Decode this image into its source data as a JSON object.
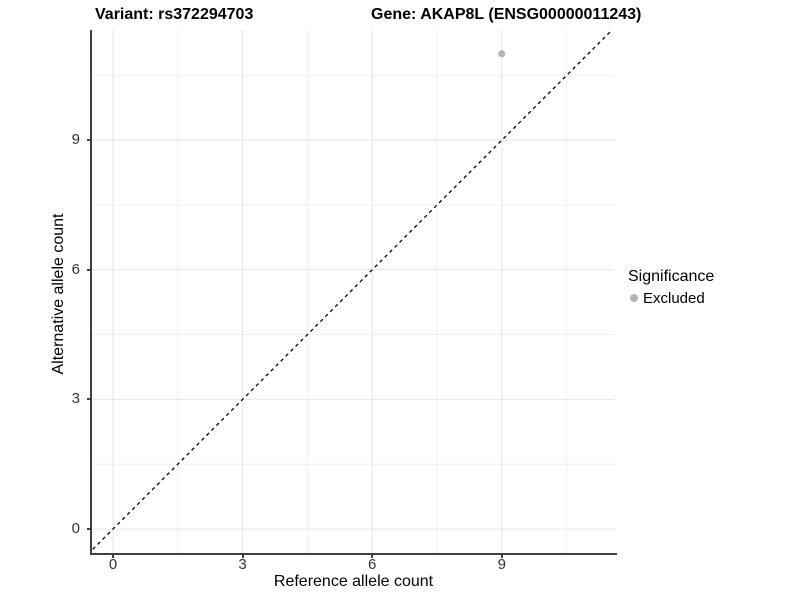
{
  "chart_data": {
    "type": "scatter",
    "titles": {
      "variant": "Variant: rs372294703",
      "gene": "Gene: AKAP8L (ENSG00000011243)"
    },
    "xlabel": "Reference allele count",
    "ylabel": "Alternative allele count",
    "x_ticks": [
      0,
      3,
      6,
      9
    ],
    "y_ticks": [
      0,
      3,
      6,
      9
    ],
    "x_minor_grid": [
      1.5,
      4.5,
      7.5,
      10.5
    ],
    "y_minor_grid": [
      1.5,
      4.5,
      7.5,
      10.5
    ],
    "xlim": [
      -0.5,
      11.6
    ],
    "ylim": [
      -0.55,
      11.6
    ],
    "grid": true,
    "points": [
      {
        "x": 9,
        "y": 11,
        "significance": "Excluded"
      }
    ],
    "identity_line": {
      "equation": "y = x",
      "style": "dashed",
      "color": "#000000"
    },
    "legend": {
      "title": "Significance",
      "position": "right",
      "entries": [
        {
          "label": "Excluded",
          "color": "#b3b5b5",
          "marker": "circle"
        }
      ]
    },
    "colors": {
      "point": "#b3b5b5",
      "grid_major": "#e4e4e4",
      "grid_minor": "#f0f0f0",
      "axis_line": "#404040",
      "tick_text": "#333333"
    }
  }
}
